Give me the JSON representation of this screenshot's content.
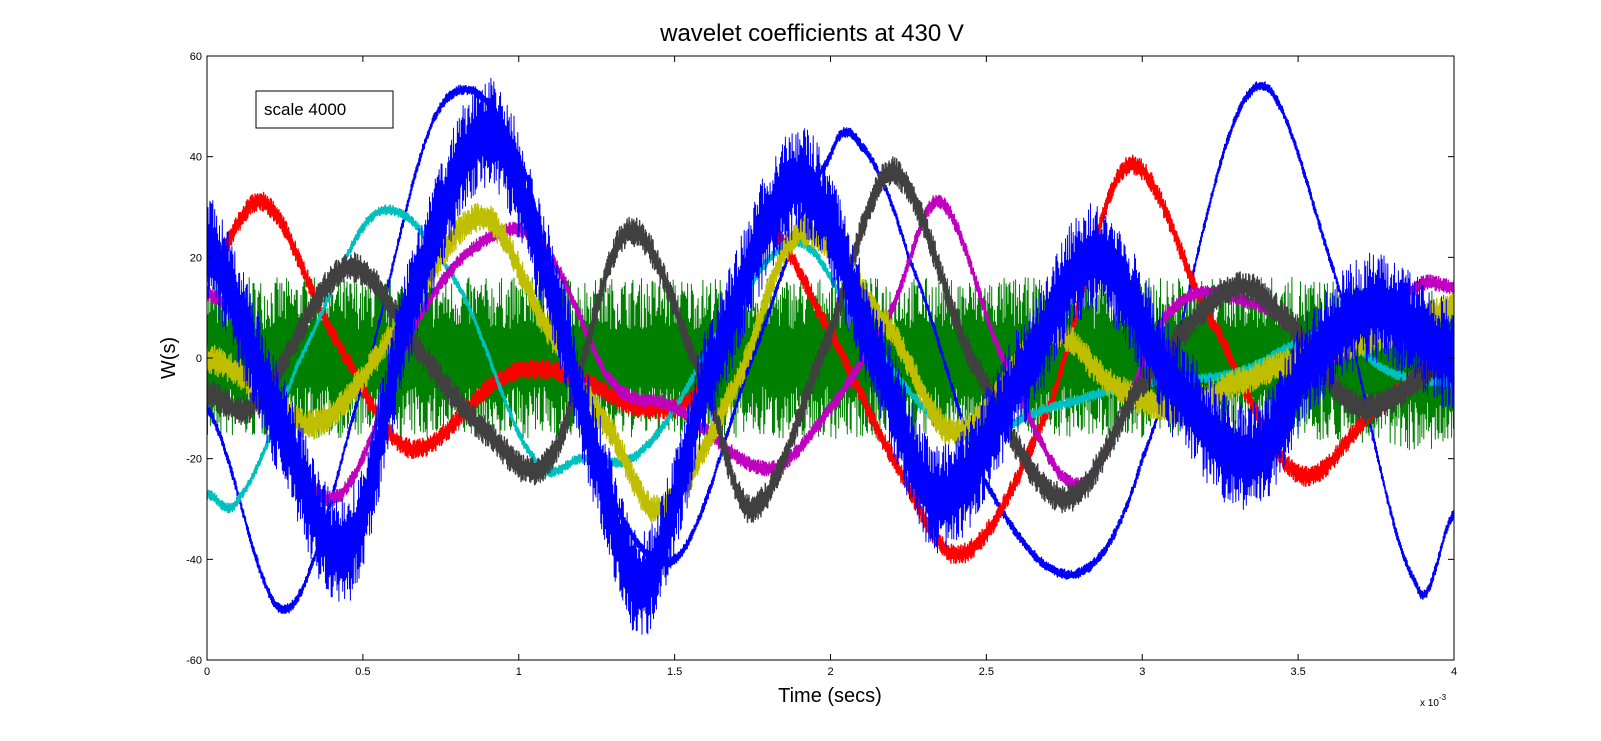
{
  "chart_data": {
    "type": "line",
    "title": "wavelet coefficients at 430 V",
    "xlabel": "Time (secs)",
    "ylabel": "W(s)",
    "x_multiplier": "x 10",
    "x_multiplier_exp": "-3",
    "xlim": [
      0,
      4
    ],
    "ylim": [
      -60,
      60
    ],
    "xticks": [
      0,
      0.5,
      1,
      1.5,
      2,
      2.5,
      3,
      3.5,
      4
    ],
    "xtick_labels": [
      "0",
      "0.5",
      "1",
      "1.5",
      "2",
      "2.5",
      "3",
      "3.5",
      "4"
    ],
    "yticks": [
      -60,
      -40,
      -20,
      0,
      20,
      40,
      60
    ],
    "ytick_labels": [
      "-60",
      "-40",
      "-20",
      "0",
      "20",
      "40",
      "60"
    ],
    "grid": false,
    "annotation": "scale 4000",
    "series": [
      {
        "color": "#008000",
        "x": [
          0,
          0.5,
          1,
          1.5,
          2,
          2.5,
          3,
          3.5,
          4
        ],
        "y": [
          0,
          0,
          0,
          0,
          0,
          0,
          0,
          0,
          -3
        ],
        "noise": 16
      },
      {
        "color": "#0000ff",
        "x": [
          0,
          0.25,
          0.5,
          0.75,
          1,
          1.25,
          1.5,
          1.75,
          2,
          2.1,
          2.25,
          2.5,
          2.78,
          3,
          3.35,
          3.6,
          3.88,
          4
        ],
        "y": [
          -10,
          -50,
          -5,
          50,
          40,
          -20,
          -40,
          0,
          40,
          42,
          20,
          -25,
          -43,
          -20,
          53,
          20,
          -45,
          -31
        ],
        "noise": 1
      },
      {
        "color": "#ff0000",
        "x": [
          0,
          0.18,
          0.4,
          0.65,
          0.95,
          1.15,
          1.4,
          1.6,
          1.78,
          2,
          2.2,
          2.42,
          2.7,
          2.95,
          3.2,
          3.5,
          3.75,
          4
        ],
        "y": [
          17,
          31,
          5,
          -18,
          -4,
          -3,
          -10,
          -5,
          25,
          5,
          -20,
          -39,
          -10,
          38,
          10,
          -23,
          -10,
          0
        ],
        "noise": 2
      },
      {
        "color": "#00bfbf",
        "x": [
          0,
          0.1,
          0.3,
          0.55,
          0.8,
          1.05,
          1.2,
          1.4,
          1.7,
          1.9,
          2.1,
          2.4,
          2.7,
          3,
          3.3,
          3.6,
          3.8,
          4
        ],
        "y": [
          -27,
          -28,
          0,
          29,
          15,
          -20,
          -20,
          -18,
          10,
          23,
          5,
          -15,
          -10,
          -5,
          -3,
          5,
          -3,
          -5
        ],
        "noise": 1
      },
      {
        "color": "#bf00bf",
        "x": [
          0,
          0.1,
          0.4,
          0.7,
          0.95,
          1.1,
          1.3,
          1.5,
          1.8,
          2,
          2.2,
          2.35,
          2.55,
          2.8,
          3.1,
          3.4,
          3.6,
          3.88,
          4
        ],
        "y": [
          13,
          5,
          -28,
          10,
          25,
          20,
          -5,
          -10,
          -22,
          -10,
          10,
          31,
          0,
          -25,
          10,
          10,
          0,
          14,
          14
        ],
        "noise": 1.5
      },
      {
        "color": "#bfbf00",
        "x": [
          0,
          0.15,
          0.35,
          0.6,
          0.88,
          1.1,
          1.3,
          1.45,
          1.7,
          1.9,
          2.2,
          2.4,
          2.7,
          2.9,
          3.1,
          3.3,
          3.5,
          3.8,
          4
        ],
        "y": [
          0,
          -5,
          -13,
          5,
          28,
          5,
          -15,
          -30,
          -5,
          25,
          5,
          -15,
          5,
          -5,
          -10,
          -5,
          0,
          5,
          10
        ],
        "noise": 3
      },
      {
        "color": "#404040",
        "x": [
          0,
          0.15,
          0.45,
          0.7,
          0.9,
          1.1,
          1.35,
          1.6,
          1.75,
          2,
          2.2,
          2.45,
          2.75,
          3,
          3.3,
          3.5,
          3.7,
          4
        ],
        "y": [
          -7,
          -9,
          18,
          0,
          -15,
          -20,
          25,
          -5,
          -30,
          5,
          37,
          0,
          -28,
          -5,
          14,
          5,
          -10,
          0
        ],
        "noise": 3
      },
      {
        "color": "#0000ff",
        "x": [
          0,
          0.25,
          0.45,
          0.65,
          0.9,
          1.1,
          1.25,
          1.4,
          1.6,
          1.9,
          2.15,
          2.35,
          2.65,
          2.85,
          3.1,
          3.35,
          3.55,
          3.75,
          4
        ],
        "y": [
          22,
          -15,
          -38,
          10,
          45,
          15,
          -20,
          -45,
          -5,
          35,
          0,
          -28,
          0,
          20,
          -5,
          -20,
          0,
          10,
          0
        ],
        "noise": 11
      }
    ]
  }
}
